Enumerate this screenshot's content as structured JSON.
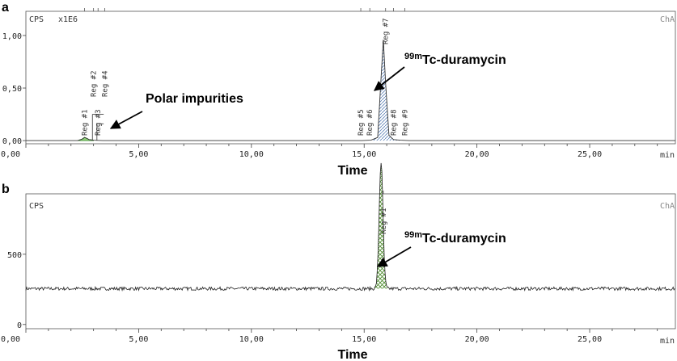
{
  "chart_data": [
    {
      "panel_label": "a",
      "type": "line",
      "y_unit_label": "CPS",
      "y_scale_label": "x1E6",
      "channel_label": "ChA",
      "xlabel": "Time",
      "x_unit": "min",
      "xlim": [
        0,
        28.8
      ],
      "ylim": [
        -0.03,
        1.23
      ],
      "x_ticks": [
        "0,00",
        "5,00",
        "10,00",
        "15,00",
        "20,00",
        "25,00"
      ],
      "x_tick_values": [
        0,
        5,
        10,
        15,
        20,
        25
      ],
      "y_ticks": [
        "0,00",
        "0,50",
        "1,00"
      ],
      "y_tick_values": [
        0,
        0.5,
        1.0
      ],
      "series": [
        {
          "x": [
            0,
            2.3,
            2.5,
            2.6,
            2.7,
            2.8,
            3.0,
            3.2,
            3.4,
            14.9,
            15.3,
            15.6,
            15.75,
            15.85,
            15.95,
            16.1,
            16.3,
            16.6,
            17.0,
            28.8
          ],
          "y": [
            0,
            0,
            0.015,
            0.03,
            0.022,
            0.01,
            0.004,
            0.002,
            0,
            0,
            0.004,
            0.03,
            0.6,
            0.96,
            0.55,
            0.05,
            0.01,
            0.004,
            0,
            0
          ]
        }
      ],
      "region_labels": [
        {
          "label": "Reg #1",
          "x": 2.6
        },
        {
          "label": "Reg #2",
          "x": 3.0
        },
        {
          "label": "Reg #3",
          "x": 3.2
        },
        {
          "label": "Reg #4",
          "x": 3.5
        },
        {
          "label": "Reg #5",
          "x": 14.85
        },
        {
          "label": "Reg #6",
          "x": 15.25
        },
        {
          "label": "Reg #7",
          "x": 15.95
        },
        {
          "label": "Reg #8",
          "x": 16.3
        },
        {
          "label": "Reg #9",
          "x": 16.8
        }
      ],
      "annotations": [
        {
          "text": "Polar impurities",
          "x": 3.5,
          "y": 0.1
        },
        {
          "pre": "99m",
          "text": "Tc-duramycin",
          "x": 16.0,
          "y": 0.5
        }
      ]
    },
    {
      "panel_label": "b",
      "type": "line",
      "y_unit_label": "CPS",
      "channel_label": "ChA",
      "xlabel": "Time",
      "x_unit": "min",
      "xlim": [
        0,
        28.8
      ],
      "ylim": [
        -30,
        930
      ],
      "x_ticks": [
        "0,00",
        "5,00",
        "10,00",
        "15,00",
        "20,00",
        "25,00"
      ],
      "x_tick_values": [
        0,
        5,
        10,
        15,
        20,
        25
      ],
      "y_ticks": [
        "0",
        "500"
      ],
      "y_tick_values": [
        0,
        500
      ],
      "baseline": 255,
      "noise_amplitude": 12,
      "peak": {
        "x": 15.75,
        "height": 900,
        "width": 0.12
      },
      "region_labels": [
        {
          "label": "Reg #1",
          "x": 15.85
        }
      ],
      "annotations": [
        {
          "pre": "99m",
          "text": "Tc-duramycin",
          "x": 16.0,
          "y": 500
        }
      ]
    }
  ]
}
